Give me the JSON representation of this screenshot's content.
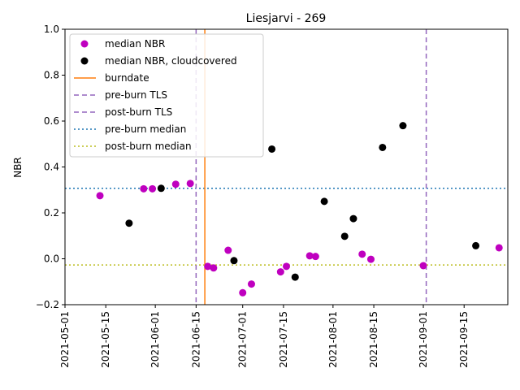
{
  "chart_data": {
    "type": "scatter",
    "title": "Liesjarvi - 269",
    "xlabel": "",
    "ylabel": "NBR",
    "xlim": [
      "2021-05-01",
      "2021-09-30"
    ],
    "ylim": [
      -0.2,
      1.0
    ],
    "x_ticks": [
      "2021-05-01",
      "2021-05-15",
      "2021-06-01",
      "2021-06-15",
      "2021-07-01",
      "2021-07-15",
      "2021-08-01",
      "2021-08-15",
      "2021-09-01",
      "2021-09-15"
    ],
    "y_ticks": [
      "−0.2",
      "0.0",
      "0.2",
      "0.4",
      "0.6",
      "0.8",
      "1.0"
    ],
    "grid": false,
    "legend_position": "top-left",
    "series": [
      {
        "name": "median NBR",
        "marker": "circle",
        "color": "#bf00bf",
        "points": [
          {
            "x": "2021-05-13",
            "y": 0.275
          },
          {
            "x": "2021-05-28",
            "y": 0.305
          },
          {
            "x": "2021-05-31",
            "y": 0.305
          },
          {
            "x": "2021-06-08",
            "y": 0.325
          },
          {
            "x": "2021-06-13",
            "y": 0.328
          },
          {
            "x": "2021-06-19",
            "y": -0.033
          },
          {
            "x": "2021-06-21",
            "y": -0.04
          },
          {
            "x": "2021-06-26",
            "y": 0.037
          },
          {
            "x": "2021-07-01",
            "y": -0.148
          },
          {
            "x": "2021-07-04",
            "y": -0.11
          },
          {
            "x": "2021-07-14",
            "y": -0.057
          },
          {
            "x": "2021-07-16",
            "y": -0.033
          },
          {
            "x": "2021-07-24",
            "y": 0.013
          },
          {
            "x": "2021-07-26",
            "y": 0.01
          },
          {
            "x": "2021-08-11",
            "y": 0.02
          },
          {
            "x": "2021-08-14",
            "y": -0.002
          },
          {
            "x": "2021-09-01",
            "y": -0.03
          },
          {
            "x": "2021-09-27",
            "y": 0.048
          }
        ]
      },
      {
        "name": "median NBR, cloudcovered",
        "marker": "circle",
        "color": "#000000",
        "points": [
          {
            "x": "2021-05-23",
            "y": 0.155
          },
          {
            "x": "2021-06-03",
            "y": 0.307
          },
          {
            "x": "2021-06-28",
            "y": -0.008
          },
          {
            "x": "2021-07-11",
            "y": 0.478
          },
          {
            "x": "2021-07-19",
            "y": -0.08
          },
          {
            "x": "2021-07-29",
            "y": 0.25
          },
          {
            "x": "2021-08-05",
            "y": 0.098
          },
          {
            "x": "2021-08-08",
            "y": 0.175
          },
          {
            "x": "2021-08-18",
            "y": 0.485
          },
          {
            "x": "2021-08-25",
            "y": 0.58
          },
          {
            "x": "2021-09-19",
            "y": 0.057
          }
        ]
      }
    ],
    "vertical_lines": [
      {
        "name": "burndate",
        "x": "2021-06-18",
        "color": "#ff7f0e",
        "style": "solid"
      },
      {
        "name": "pre-burn TLS",
        "x": "2021-06-15",
        "color": "#9467bd",
        "style": "dashed"
      },
      {
        "name": "post-burn TLS",
        "x": "2021-09-02",
        "color": "#9467bd",
        "style": "dashed"
      }
    ],
    "horizontal_lines": [
      {
        "name": "pre-burn median",
        "y": 0.307,
        "color": "#1f77b4",
        "style": "dotted"
      },
      {
        "name": "post-burn median",
        "y": -0.027,
        "color": "#bcbd22",
        "style": "dotted"
      }
    ]
  }
}
